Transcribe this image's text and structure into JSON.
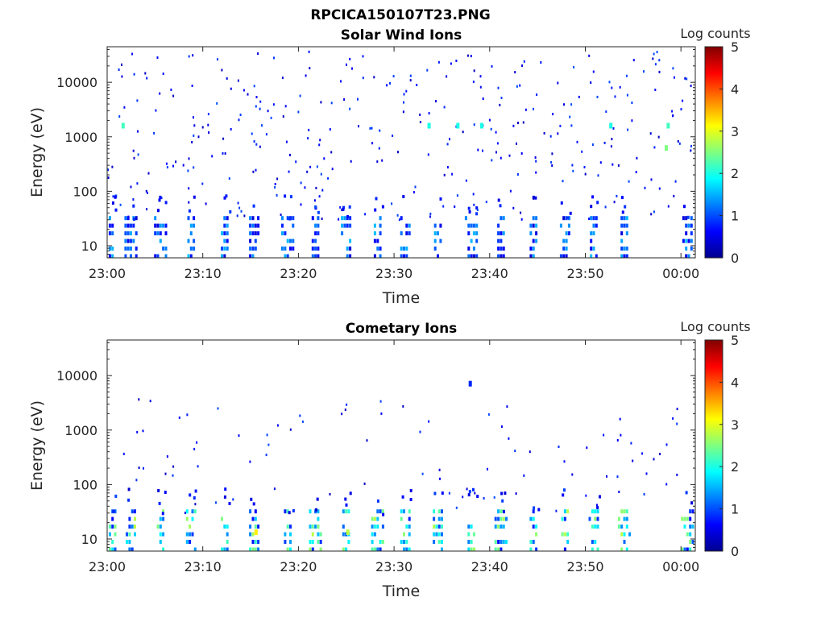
{
  "figure_title": "RPCICA150107T23.PNG",
  "chart_data": [
    {
      "type": "heatmap",
      "title": "Solar Wind Ions",
      "xlabel": "Time",
      "ylabel": "Energy (eV)",
      "x_ticks": [
        "23:00",
        "23:10",
        "23:20",
        "23:30",
        "23:40",
        "23:50",
        "00:00"
      ],
      "x_range_minutes": [
        0,
        61.5
      ],
      "y_ticks": [
        "10",
        "100",
        "1000",
        "10000"
      ],
      "y_scale": "log",
      "y_range": [
        6,
        45000
      ],
      "colorbar": {
        "label": "Log counts",
        "ticks": [
          "0",
          "1",
          "2",
          "3",
          "4",
          "5"
        ],
        "range": [
          0,
          5
        ],
        "colormap": "jet"
      },
      "low_energy_bursts_minutes": [
        0.3,
        2.5,
        5.6,
        8.8,
        12.3,
        15.4,
        18.9,
        21.8,
        25.0,
        28.3,
        31.2,
        34.6,
        38.1,
        41.2,
        44.6,
        47.9,
        50.9,
        54.1,
        60.7
      ],
      "notable_values": [
        {
          "minute": 1.5,
          "energy": 1800,
          "log_counts": 2.2
        },
        {
          "minute": 33.5,
          "energy": 1800,
          "log_counts": 2.0
        },
        {
          "minute": 36.5,
          "energy": 1800,
          "log_counts": 2.0
        },
        {
          "minute": 39.0,
          "energy": 1800,
          "log_counts": 2.0
        },
        {
          "minute": 52.5,
          "energy": 1800,
          "log_counts": 2.0
        },
        {
          "minute": 58.3,
          "energy": 700,
          "log_counts": 2.5
        },
        {
          "minute": 58.5,
          "energy": 1800,
          "log_counts": 2.2
        }
      ]
    },
    {
      "type": "heatmap",
      "title": "Cometary Ions",
      "xlabel": "Time",
      "ylabel": "Energy (eV)",
      "x_ticks": [
        "23:00",
        "23:10",
        "23:20",
        "23:30",
        "23:40",
        "23:50",
        "00:00"
      ],
      "x_range_minutes": [
        0,
        61.5
      ],
      "y_ticks": [
        "10",
        "100",
        "1000",
        "10000"
      ],
      "y_scale": "log",
      "y_range": [
        6,
        45000
      ],
      "colorbar": {
        "label": "Log counts",
        "ticks": [
          "0",
          "1",
          "2",
          "3",
          "4",
          "5"
        ],
        "range": [
          0,
          5
        ],
        "colormap": "jet"
      },
      "low_energy_bursts_minutes": [
        0.3,
        2.5,
        5.6,
        8.8,
        12.3,
        15.4,
        18.9,
        21.8,
        25.0,
        28.3,
        31.2,
        34.6,
        38.1,
        41.2,
        44.6,
        47.9,
        50.9,
        54.1,
        60.7
      ],
      "notable_values": [
        {
          "minute": 15.4,
          "energy": 15,
          "log_counts": 3.2
        },
        {
          "minute": 25.0,
          "energy": 15,
          "log_counts": 2.8
        },
        {
          "minute": 37.8,
          "energy": 8000,
          "log_counts": 0.8
        }
      ]
    }
  ]
}
